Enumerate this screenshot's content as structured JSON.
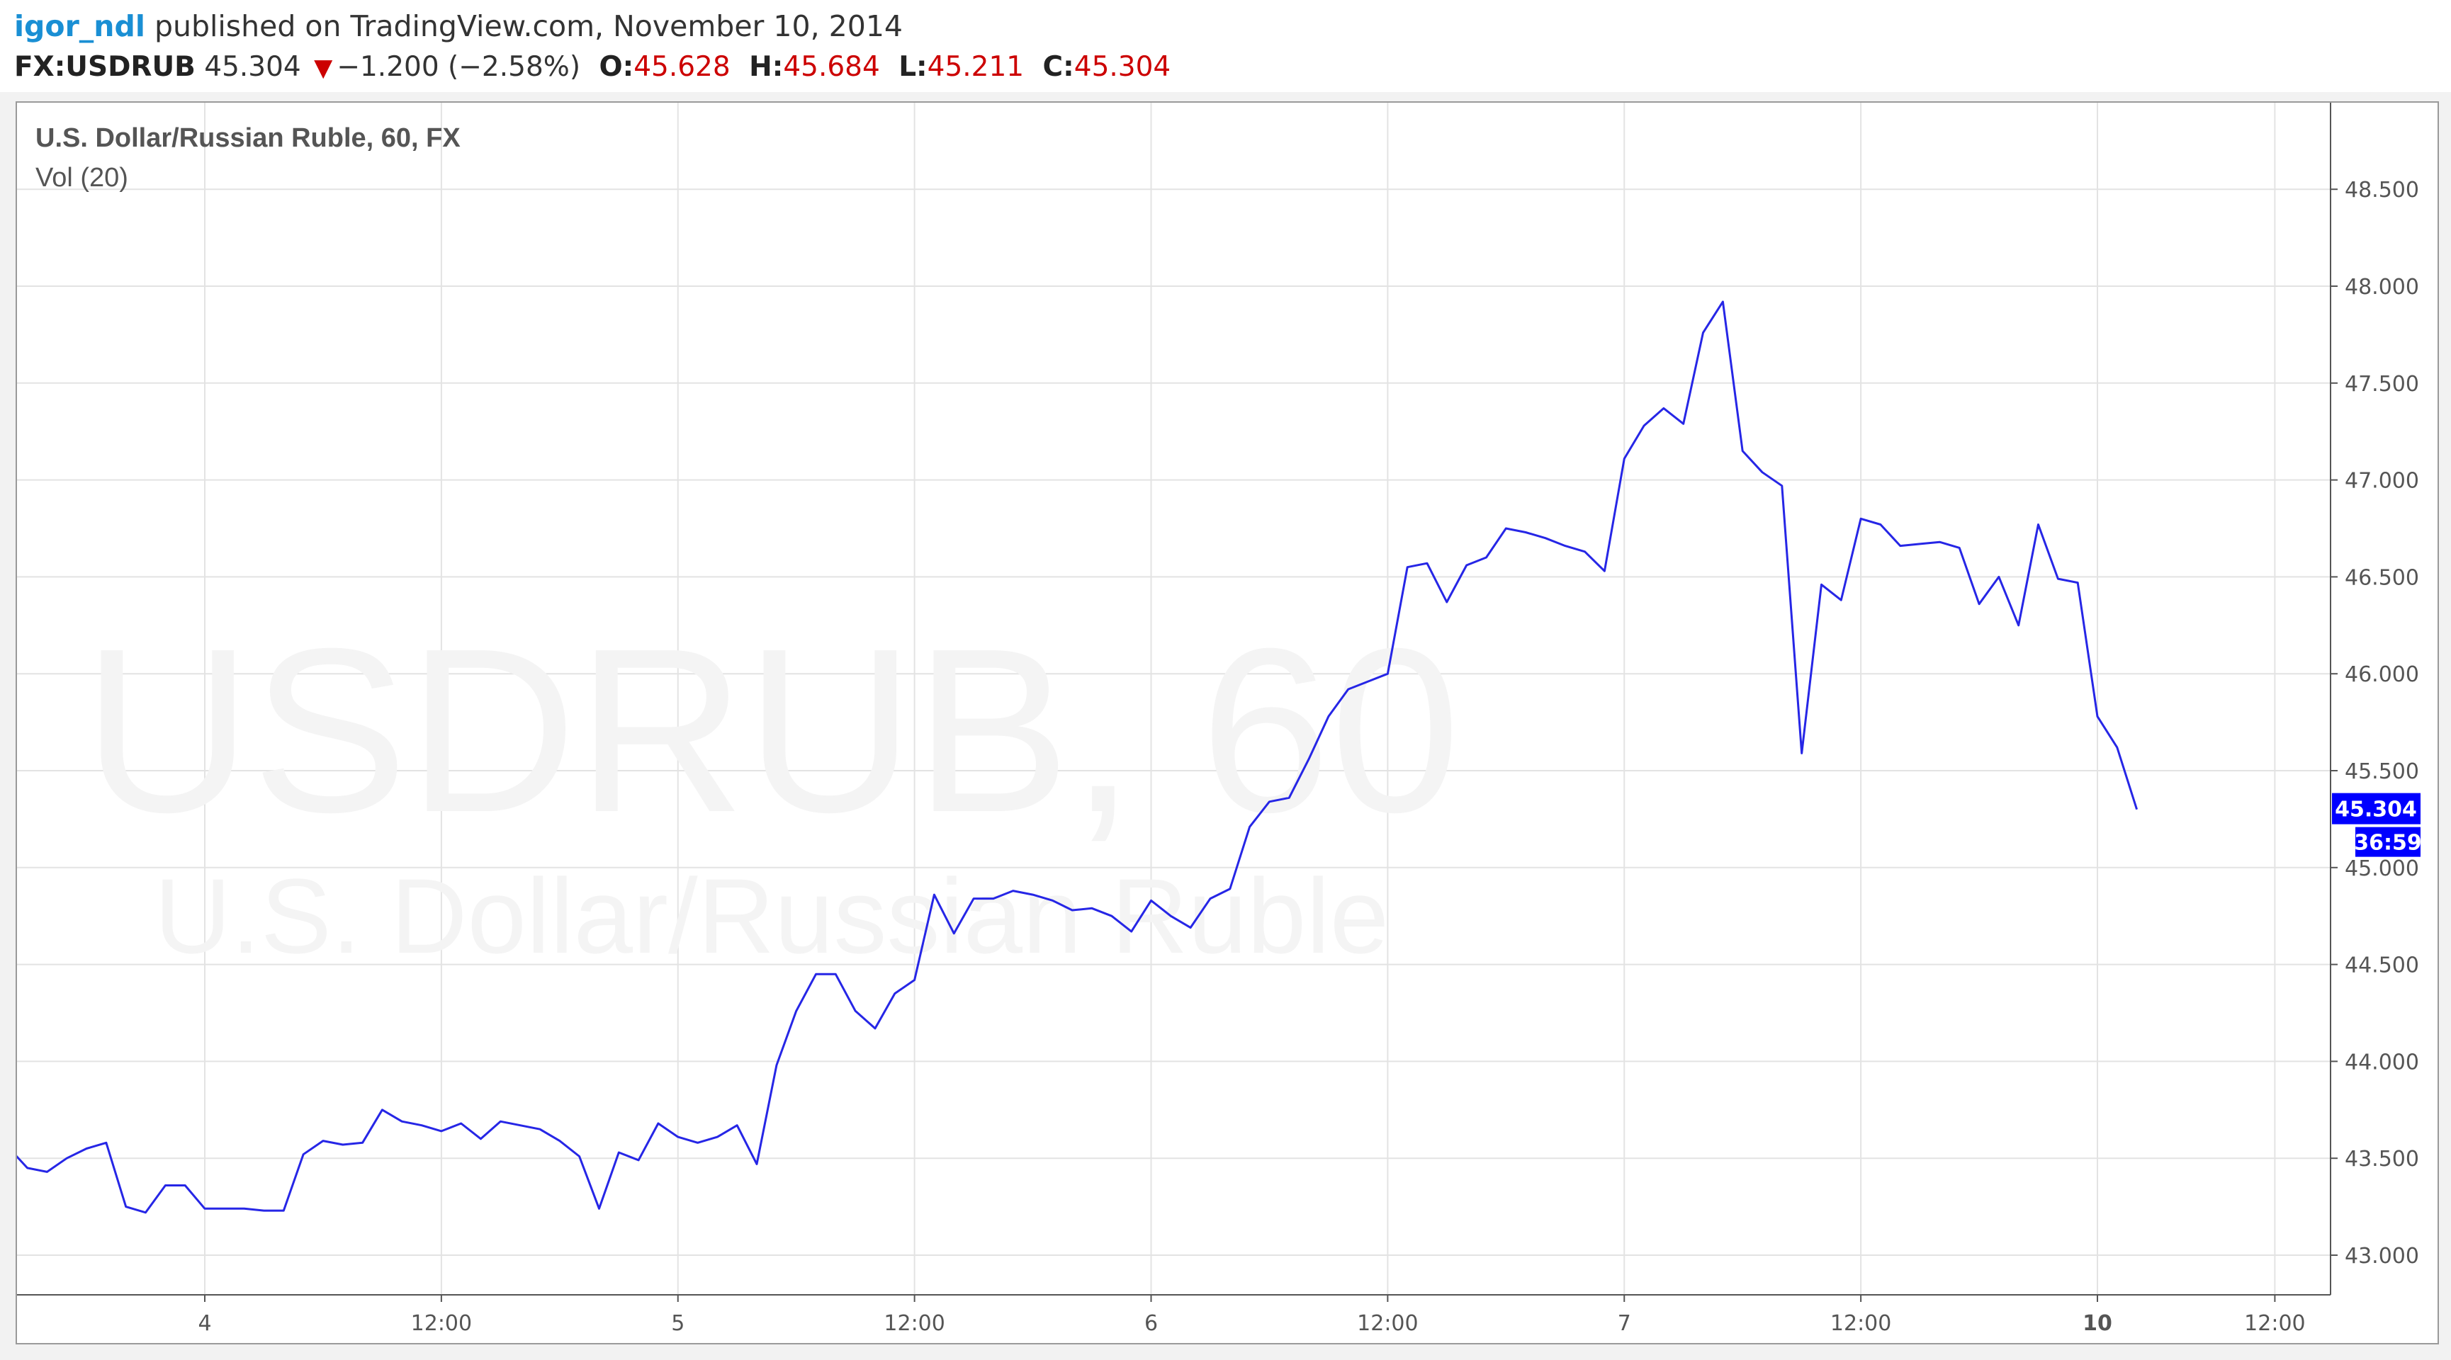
{
  "header": {
    "user": "igor_ndl",
    "published": "published on TradingView.com, November 10, 2014",
    "symbol": "FX:USDRUB",
    "last": "45.304",
    "change_arrow": "down-triangle-icon",
    "change": "−1.200 (−2.58%)",
    "open_label": "O:",
    "open": "45.628",
    "high_label": "H:",
    "high": "45.684",
    "low_label": "L:",
    "low": "45.211",
    "close_label": "C:",
    "close": "45.304"
  },
  "chart_data": {
    "type": "line",
    "title": "U.S. Dollar/Russian Ruble, 60, FX",
    "subtitle": "Vol (20)",
    "watermark": "USDRUB, 60",
    "watermark_sub": "U.S. Dollar/Russian Ruble",
    "ylim": [
      42.78,
      48.92
    ],
    "xlim": [
      0,
      116
    ],
    "y_ticks": [
      "43.000",
      "43.500",
      "44.000",
      "44.500",
      "45.000",
      "45.500",
      "46.000",
      "46.500",
      "47.000",
      "47.500",
      "48.000",
      "48.500"
    ],
    "x_ticks": [
      {
        "label": "4",
        "x": 10,
        "bold": false
      },
      {
        "label": "12:00",
        "x": 22,
        "bold": false
      },
      {
        "label": "5",
        "x": 34,
        "bold": false
      },
      {
        "label": "12:00",
        "x": 46,
        "bold": false
      },
      {
        "label": "6",
        "x": 58,
        "bold": false
      },
      {
        "label": "12:00",
        "x": 70,
        "bold": false
      },
      {
        "label": "7",
        "x": 82,
        "bold": false
      },
      {
        "label": "12:00",
        "x": 94,
        "bold": false
      },
      {
        "label": "10",
        "x": 106,
        "bold": true
      },
      {
        "label": "12:00",
        "x": 115,
        "bold": false
      }
    ],
    "grid": true,
    "series": [
      {
        "color": "#2626e6",
        "values": [
          43.56,
          43.45,
          43.43,
          43.5,
          43.55,
          43.58,
          43.25,
          43.22,
          43.36,
          43.36,
          43.24,
          43.24,
          43.24,
          43.23,
          43.23,
          43.52,
          43.59,
          43.57,
          43.58,
          43.75,
          43.69,
          43.67,
          43.64,
          43.68,
          43.6,
          43.69,
          43.67,
          43.65,
          43.59,
          43.51,
          43.24,
          43.53,
          43.49,
          43.68,
          43.61,
          43.58,
          43.61,
          43.67,
          43.47,
          43.98,
          44.26,
          44.45,
          44.45,
          44.26,
          44.17,
          44.35,
          44.42,
          44.86,
          44.66,
          44.84,
          44.84,
          44.88,
          44.86,
          44.83,
          44.78,
          44.79,
          44.75,
          44.67,
          44.83,
          44.75,
          44.69,
          44.84,
          44.89,
          45.21,
          45.34,
          45.36,
          45.56,
          45.78,
          45.92,
          45.96,
          46.0,
          46.55,
          46.57,
          46.37,
          46.56,
          46.6,
          46.75,
          46.73,
          46.7,
          46.66,
          46.63,
          46.53,
          47.11,
          47.28,
          47.37,
          47.29,
          47.76,
          47.92,
          47.15,
          47.04,
          46.97,
          45.59,
          46.46,
          46.38,
          46.8,
          46.77,
          46.66,
          46.67,
          46.68,
          46.65,
          46.36,
          46.5,
          46.25,
          46.77,
          46.49,
          46.47,
          45.78,
          45.62,
          45.3
        ]
      }
    ],
    "last_price_label": "45.304",
    "countdown_label": "36:59",
    "accent_color": "#0000ff"
  }
}
